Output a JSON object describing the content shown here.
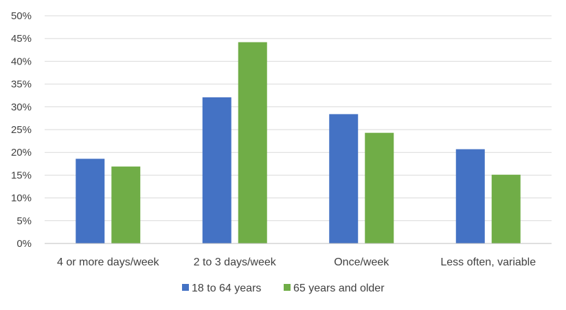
{
  "chart_data": {
    "type": "bar",
    "categories": [
      "4 or more days/week",
      "2 to 3 days/week",
      "Once/week",
      "Less often, variable"
    ],
    "series": [
      {
        "name": "18 to 64 years",
        "values": [
          18.6,
          32.1,
          28.4,
          20.7
        ],
        "color": "#4472c4"
      },
      {
        "name": "65 years and older",
        "values": [
          16.9,
          44.2,
          24.3,
          15.1
        ],
        "color": "#70ad47"
      }
    ],
    "yticks": [
      "0%",
      "5%",
      "10%",
      "15%",
      "20%",
      "25%",
      "30%",
      "35%",
      "40%",
      "45%",
      "50%"
    ],
    "ylim": [
      0,
      50
    ],
    "grid": true,
    "legend_position": "bottom"
  }
}
